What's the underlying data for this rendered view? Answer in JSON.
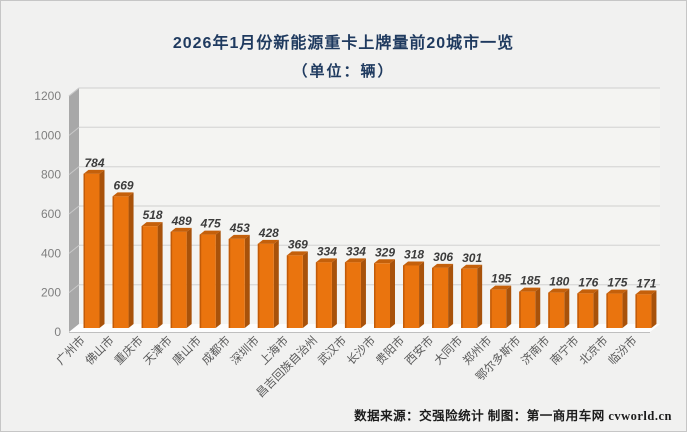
{
  "chart_data": {
    "type": "bar",
    "style": "3d-column",
    "title": "2026年1月份新能源重卡上牌量前20城市一览",
    "subtitle": "（单位：辆）",
    "categories": [
      "广州市",
      "佛山市",
      "重庆市",
      "天津市",
      "唐山市",
      "成都市",
      "深圳市",
      "上海市",
      "昌吉回族自治州",
      "武汉市",
      "长沙市",
      "贵阳市",
      "西安市",
      "大同市",
      "郑州市",
      "鄂尔多斯市",
      "济南市",
      "南宁市",
      "北京市",
      "临汾市"
    ],
    "values": [
      784,
      669,
      518,
      489,
      475,
      453,
      428,
      369,
      334,
      334,
      329,
      318,
      306,
      301,
      195,
      185,
      180,
      176,
      175,
      171
    ],
    "xlabel": "",
    "ylabel": "",
    "ylim": [
      0,
      1200
    ],
    "ytick_interval": 200,
    "grid": true,
    "legend": "none",
    "colors": {
      "background": "#F1F1F0",
      "plot_background": "#F4F4F2",
      "bar_face": "#EA740E",
      "bar_side": "#A8520A",
      "bar_top": "#C4600B",
      "bar_edge": "#C25B08",
      "wall": "#A8A8A8",
      "wall_tick": "#C9C9C9",
      "floor": "#FDFDFD",
      "floor_edge": "#BFBFBF",
      "gridline": "#DBDBDA",
      "title": "#1F3A5F",
      "value_label": "#3C3C3C",
      "axis_label": "#7F7F7F",
      "category_label": "#595959"
    }
  },
  "footer": {
    "source_text": "数据来源：交强险统计  制图：第一商用车网 cvworld.cn"
  }
}
